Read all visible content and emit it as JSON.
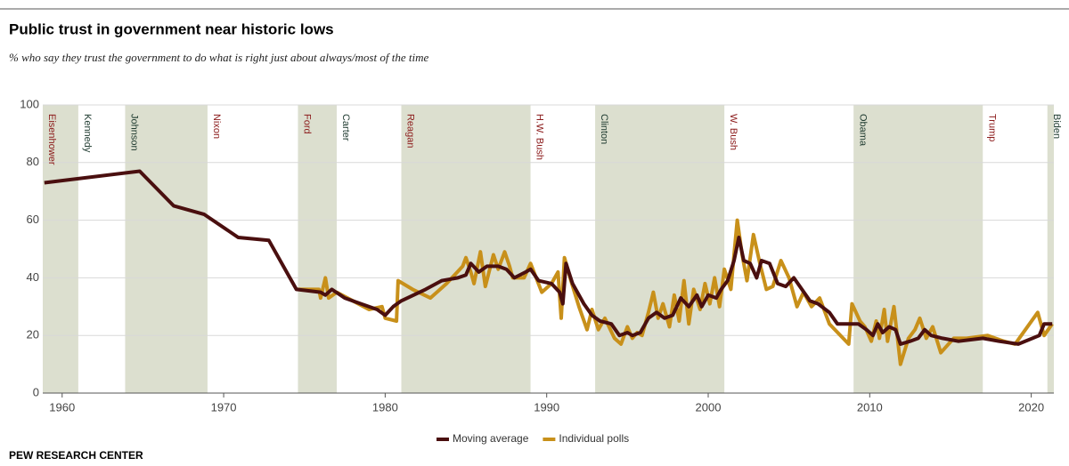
{
  "chart_data": {
    "type": "line",
    "title": "Public trust in government near historic lows",
    "subtitle": "% who say they trust the government to do what is right just about always/most of the time",
    "source": "PEW RESEARCH CENTER",
    "xlim": [
      1958.8,
      2021.4
    ],
    "xticks": [
      1960,
      1970,
      1980,
      1990,
      2000,
      2010,
      2020
    ],
    "ylim": [
      0,
      100
    ],
    "yticks": [
      0,
      20,
      40,
      60,
      80,
      100
    ],
    "grid": true,
    "band_color": "#dcdfcf",
    "periods": [
      {
        "name": "Eisenhower",
        "start": 1958.8,
        "color": "#8b1a1a",
        "shaded": true
      },
      {
        "name": "Kennedy",
        "start": 1961,
        "color": "#1e3a2f",
        "shaded": false
      },
      {
        "name": "Johnson",
        "start": 1963.9,
        "color": "#1e3a2f",
        "shaded": true
      },
      {
        "name": "Nixon",
        "start": 1969,
        "color": "#8b1a1a",
        "shaded": false
      },
      {
        "name": "Ford",
        "start": 1974.6,
        "color": "#8b1a1a",
        "shaded": true
      },
      {
        "name": "Carter",
        "start": 1977,
        "color": "#1e3a2f",
        "shaded": false
      },
      {
        "name": "Reagan",
        "start": 1981,
        "color": "#8b1a1a",
        "shaded": true
      },
      {
        "name": "H.W. Bush",
        "start": 1989,
        "color": "#8b1a1a",
        "shaded": false
      },
      {
        "name": "Clinton",
        "start": 1993,
        "color": "#1e3a2f",
        "shaded": true
      },
      {
        "name": "W. Bush",
        "start": 2001,
        "color": "#8b1a1a",
        "shaded": false
      },
      {
        "name": "Obama",
        "start": 2009,
        "color": "#1e3a2f",
        "shaded": true
      },
      {
        "name": "Trump",
        "start": 2017,
        "color": "#8b1a1a",
        "shaded": false
      },
      {
        "name": "Biden",
        "start": 2021,
        "color": "#1e3a2f",
        "shaded": true
      }
    ],
    "series": [
      {
        "name": "Individual polls",
        "color": "#c8901a",
        "x": [
          1974.5,
          1975.9,
          1976.0,
          1976.3,
          1976.5,
          1977.0,
          1978.0,
          1979.0,
          1979.8,
          1980.0,
          1980.7,
          1980.8,
          1981.7,
          1982.8,
          1983.8,
          1984.8,
          1985.0,
          1985.3,
          1985.5,
          1985.9,
          1986.2,
          1986.7,
          1987.0,
          1987.4,
          1987.7,
          1987.9,
          1988.6,
          1989.0,
          1989.7,
          1990.3,
          1990.7,
          1990.9,
          1991.1,
          1991.5,
          1992.0,
          1992.5,
          1992.8,
          1993.2,
          1993.6,
          1994.2,
          1994.6,
          1995.0,
          1995.3,
          1995.6,
          1995.9,
          1996.3,
          1996.6,
          1996.9,
          1997.2,
          1997.6,
          1997.9,
          1998.2,
          1998.5,
          1998.8,
          1999.1,
          1999.5,
          1999.8,
          2000.1,
          2000.4,
          2000.7,
          2001.0,
          2001.4,
          2001.8,
          2002.1,
          2002.4,
          2002.8,
          2003.2,
          2003.6,
          2004.0,
          2004.5,
          2005.0,
          2005.5,
          2005.9,
          2006.4,
          2006.9,
          2007.5,
          2008.7,
          2008.9,
          2009.4,
          2009.7,
          2010.1,
          2010.4,
          2010.6,
          2010.9,
          2011.1,
          2011.5,
          2011.9,
          2012.4,
          2012.8,
          2013.1,
          2013.5,
          2013.9,
          2014.4,
          2015.2,
          2016.0,
          2017.3,
          2018.3,
          2019.0,
          2020.4,
          2020.8,
          2021.3
        ],
        "values": [
          36,
          36,
          33,
          40,
          33,
          35,
          32,
          29,
          30,
          26,
          25,
          39,
          36,
          33,
          38,
          44,
          47,
          42,
          38,
          49,
          37,
          48,
          43,
          49,
          44,
          40,
          40,
          45,
          35,
          38,
          42,
          26,
          47,
          39,
          30,
          22,
          29,
          22,
          26,
          19,
          17,
          23,
          19,
          21,
          20,
          28,
          35,
          26,
          31,
          23,
          34,
          25,
          39,
          24,
          36,
          29,
          38,
          31,
          40,
          30,
          43,
          36,
          60,
          48,
          39,
          55,
          45,
          36,
          37,
          46,
          40,
          30,
          35,
          30,
          33,
          24,
          17,
          31,
          25,
          23,
          18,
          25,
          19,
          29,
          18,
          30,
          10,
          19,
          22,
          26,
          19,
          23,
          14,
          19,
          19,
          20,
          18,
          17,
          28,
          20,
          24
        ]
      },
      {
        "name": "Moving average",
        "color": "#4a0f0f",
        "x": [
          1958.9,
          1964.8,
          1966.9,
          1968.8,
          1970.9,
          1972.8,
          1974.5,
          1976.0,
          1976.3,
          1976.7,
          1977.5,
          1978.5,
          1979.5,
          1980.0,
          1980.5,
          1981.0,
          1982.5,
          1983.5,
          1984.5,
          1985.0,
          1985.3,
          1985.8,
          1986.3,
          1987.0,
          1987.5,
          1988.0,
          1988.7,
          1989.0,
          1989.5,
          1990.3,
          1990.8,
          1991.0,
          1991.2,
          1991.6,
          1992.3,
          1992.8,
          1993.3,
          1994.0,
          1994.5,
          1995.0,
          1995.3,
          1995.8,
          1996.3,
          1996.8,
          1997.3,
          1997.8,
          1998.3,
          1998.8,
          1999.3,
          1999.6,
          2000.0,
          2000.5,
          2000.8,
          2001.2,
          2001.6,
          2001.9,
          2002.2,
          2002.6,
          2003.0,
          2003.3,
          2003.8,
          2004.3,
          2004.8,
          2005.3,
          2005.8,
          2006.3,
          2006.8,
          2007.5,
          2008.0,
          2008.8,
          2009.3,
          2009.8,
          2010.2,
          2010.5,
          2010.8,
          2011.2,
          2011.6,
          2011.9,
          2012.5,
          2013.0,
          2013.4,
          2013.8,
          2014.5,
          2015.5,
          2017.0,
          2018.0,
          2019.2,
          2020.5,
          2020.8,
          2021.3
        ],
        "values": [
          73,
          77,
          65,
          62,
          54,
          53,
          36,
          35,
          34,
          36,
          33,
          31,
          29,
          27,
          30,
          32,
          36,
          39,
          40,
          41,
          45,
          42,
          44,
          44,
          43,
          40,
          42,
          43,
          39,
          38,
          35,
          31,
          45,
          38,
          31,
          27,
          25,
          24,
          20,
          21,
          20,
          21,
          26,
          28,
          26,
          27,
          33,
          30,
          34,
          30,
          34,
          33,
          36,
          39,
          46,
          54,
          46,
          45,
          40,
          46,
          45,
          38,
          37,
          40,
          36,
          32,
          31,
          28,
          24,
          24,
          24,
          22,
          20,
          24,
          21,
          23,
          22,
          17,
          18,
          19,
          22,
          20,
          19,
          18,
          19,
          18,
          17,
          20,
          24,
          24
        ]
      }
    ],
    "legend": [
      "Moving average",
      "Individual polls"
    ]
  }
}
